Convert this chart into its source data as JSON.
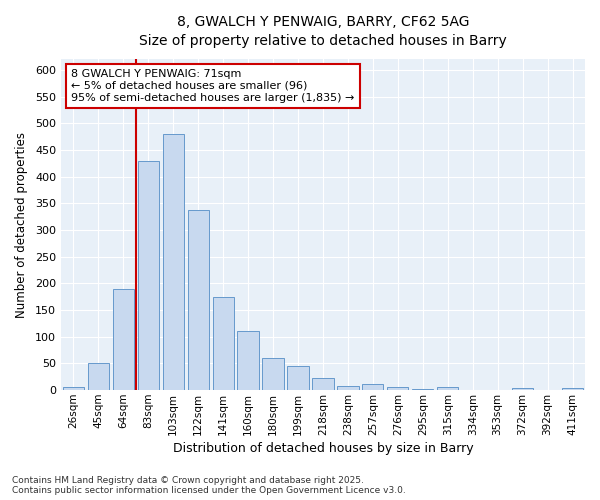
{
  "title_line1": "8, GWALCH Y PENWAIG, BARRY, CF62 5AG",
  "title_line2": "Size of property relative to detached houses in Barry",
  "xlabel": "Distribution of detached houses by size in Barry",
  "ylabel": "Number of detached properties",
  "bar_color": "#c8d9ef",
  "bar_edge_color": "#6699cc",
  "background_color": "#e8f0f8",
  "fig_background_color": "#ffffff",
  "grid_color": "#ffffff",
  "categories": [
    "26sqm",
    "45sqm",
    "64sqm",
    "83sqm",
    "103sqm",
    "122sqm",
    "141sqm",
    "160sqm",
    "180sqm",
    "199sqm",
    "218sqm",
    "238sqm",
    "257sqm",
    "276sqm",
    "295sqm",
    "315sqm",
    "334sqm",
    "353sqm",
    "372sqm",
    "392sqm",
    "411sqm"
  ],
  "values": [
    5,
    50,
    190,
    430,
    480,
    338,
    175,
    110,
    60,
    45,
    22,
    8,
    11,
    6,
    2,
    6,
    1,
    0,
    4,
    0,
    4
  ],
  "ylim": [
    0,
    620
  ],
  "yticks": [
    0,
    50,
    100,
    150,
    200,
    250,
    300,
    350,
    400,
    450,
    500,
    550,
    600
  ],
  "vline_x_idx": 2.5,
  "vline_color": "#cc0000",
  "annotation_text": "8 GWALCH Y PENWAIG: 71sqm\n← 5% of detached houses are smaller (96)\n95% of semi-detached houses are larger (1,835) →",
  "annotation_box_edgecolor": "#cc0000",
  "footnote": "Contains HM Land Registry data © Crown copyright and database right 2025.\nContains public sector information licensed under the Open Government Licence v3.0."
}
